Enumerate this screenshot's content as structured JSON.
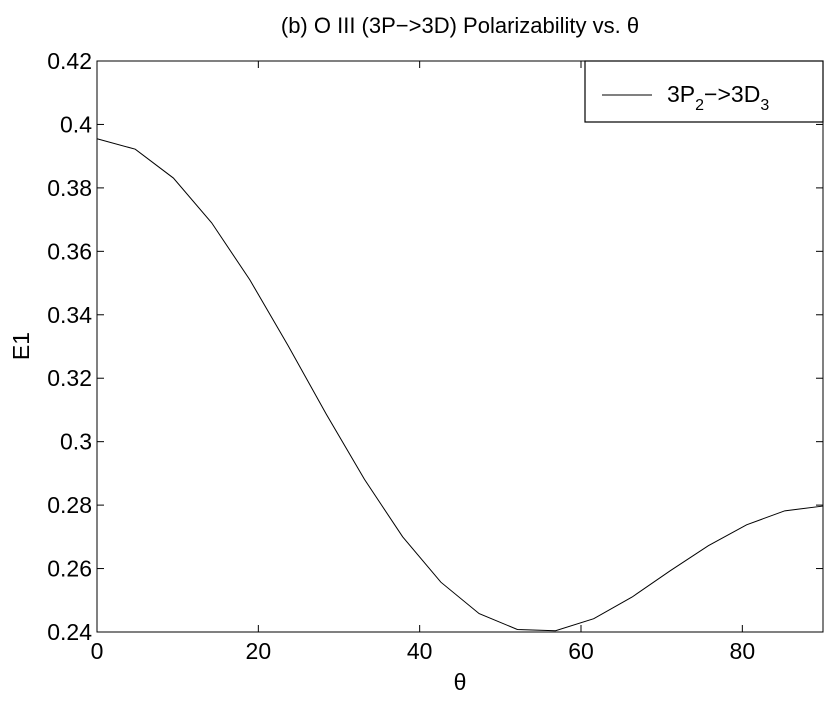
{
  "chart_data": {
    "type": "line",
    "title": "(b) O III (3P−>3D) Polarizability vs. θ",
    "xlabel": "θ",
    "ylabel": "E1",
    "xlim": [
      0,
      90
    ],
    "ylim": [
      0.24,
      0.42
    ],
    "xticks": [
      0,
      20,
      40,
      60,
      80
    ],
    "xtick_labels": [
      "0",
      "20",
      "40",
      "60",
      "80"
    ],
    "yticks": [
      0.24,
      0.26,
      0.28,
      0.3,
      0.32,
      0.34,
      0.36,
      0.38,
      0.4,
      0.42
    ],
    "ytick_labels": [
      "0.24",
      "0.26",
      "0.28",
      "0.3",
      "0.32",
      "0.34",
      "0.36",
      "0.38",
      "0.4",
      "0.42"
    ],
    "grid": false,
    "legend_position": "top-right",
    "series": [
      {
        "name": "3P₂−>3D₃",
        "legend_main": "3P",
        "legend_sub1": "2",
        "legend_mid": "−>3D",
        "legend_sub2": "3",
        "color": "#000000",
        "x": [
          0,
          4.74,
          9.47,
          14.21,
          18.95,
          23.68,
          28.42,
          33.16,
          37.89,
          42.63,
          47.37,
          52.11,
          56.84,
          61.58,
          66.32,
          71.05,
          75.79,
          80.53,
          85.26,
          90
        ],
        "y": [
          0.3955,
          0.3922,
          0.3831,
          0.369,
          0.351,
          0.3303,
          0.3087,
          0.2881,
          0.27,
          0.2557,
          0.2458,
          0.2408,
          0.2404,
          0.2442,
          0.251,
          0.2593,
          0.2672,
          0.2738,
          0.2782,
          0.2797
        ]
      }
    ]
  }
}
